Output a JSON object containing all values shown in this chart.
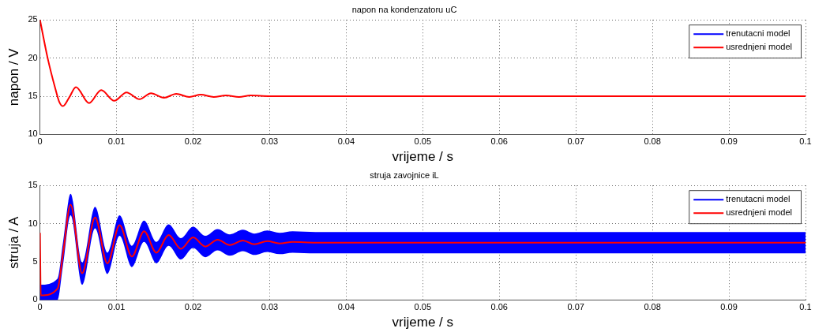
{
  "chart_data": [
    {
      "type": "line",
      "title": "napon na kondenzatoru uC",
      "xlabel": "vrijeme / s",
      "ylabel": "napon / V",
      "x": [
        0,
        0.001,
        0.002,
        0.0025,
        0.003,
        0.0038,
        0.0047,
        0.0064,
        0.008,
        0.0097,
        0.0113,
        0.013,
        0.0145,
        0.0162,
        0.0178,
        0.0195,
        0.021,
        0.0227,
        0.0243,
        0.026,
        0.0275,
        0.03,
        0.1
      ],
      "series": [
        {
          "name": "trenutacni model",
          "color": "#0000ff",
          "values": [
            null,
            null,
            null,
            null,
            null,
            null,
            null,
            null,
            null,
            null,
            null,
            null,
            null,
            null,
            null,
            null,
            null,
            null,
            null,
            null,
            null,
            null,
            null
          ]
        },
        {
          "name": "usrednjeni model",
          "color": "#ff0000",
          "values": [
            25,
            20,
            16,
            14.3,
            13.7,
            14.8,
            16.2,
            14.1,
            15.8,
            14.4,
            15.5,
            14.6,
            15.4,
            14.8,
            15.3,
            14.9,
            15.2,
            14.9,
            15.1,
            14.9,
            15.1,
            15,
            15
          ]
        }
      ],
      "xlim": [
        0,
        0.1
      ],
      "xticks": [
        0,
        0.01,
        0.02,
        0.03,
        0.04,
        0.05,
        0.06,
        0.07,
        0.08,
        0.09,
        0.1
      ],
      "ylim": [
        10,
        25
      ],
      "yticks": [
        10,
        15,
        20,
        25
      ],
      "grid": true,
      "legend": "top right"
    },
    {
      "type": "line",
      "title": "struja zavojnice iL",
      "xlabel": "vrijeme / s",
      "ylabel": "struja / A",
      "x": [
        0,
        0.0001,
        0.0023,
        0.003,
        0.004,
        0.0055,
        0.0072,
        0.0088,
        0.0104,
        0.012,
        0.0136,
        0.0152,
        0.0168,
        0.0184,
        0.02,
        0.0216,
        0.0232,
        0.0248,
        0.0265,
        0.028,
        0.0297,
        0.0313,
        0.033,
        0.036,
        0.1
      ],
      "series": [
        {
          "name": "trenutacni model",
          "color": "#0000ff",
          "values": [
            null,
            null,
            null,
            null,
            null,
            null,
            null,
            null,
            null,
            null,
            null,
            null,
            null,
            null,
            null,
            null,
            null,
            null,
            null,
            null,
            null,
            null,
            null,
            null,
            null
          ],
          "upper": [
            2,
            2,
            2.8,
            7.5,
            13.9,
            4.9,
            12.2,
            6.2,
            11.1,
            7.1,
            10.4,
            7.6,
            9.9,
            8.1,
            9.6,
            8.4,
            9.3,
            8.6,
            9.2,
            8.7,
            9.1,
            8.8,
            9,
            8.9,
            8.9
          ],
          "lower": [
            0,
            0,
            0,
            4.5,
            11.1,
            2,
            9.4,
            3.4,
            8.4,
            4.3,
            7.6,
            4.8,
            7.1,
            5.3,
            6.8,
            5.6,
            6.5,
            5.8,
            6.4,
            5.9,
            6.3,
            6,
            6.2,
            6.1,
            6.1
          ]
        },
        {
          "name": "usrednjeni model",
          "color": "#ff0000",
          "values": [
            8.8,
            0.6,
            1.5,
            6,
            12.5,
            3.5,
            10.8,
            4.8,
            9.8,
            5.7,
            9,
            6.2,
            8.5,
            6.7,
            8.2,
            7,
            7.9,
            7.2,
            7.8,
            7.3,
            7.7,
            7.4,
            7.6,
            7.5,
            7.5
          ]
        }
      ],
      "xlim": [
        0,
        0.1
      ],
      "xticks": [
        0,
        0.01,
        0.02,
        0.03,
        0.04,
        0.05,
        0.06,
        0.07,
        0.08,
        0.09,
        0.1
      ],
      "ylim": [
        0,
        15
      ],
      "yticks": [
        0,
        5,
        10,
        15
      ],
      "grid": true,
      "legend": "top right"
    }
  ]
}
